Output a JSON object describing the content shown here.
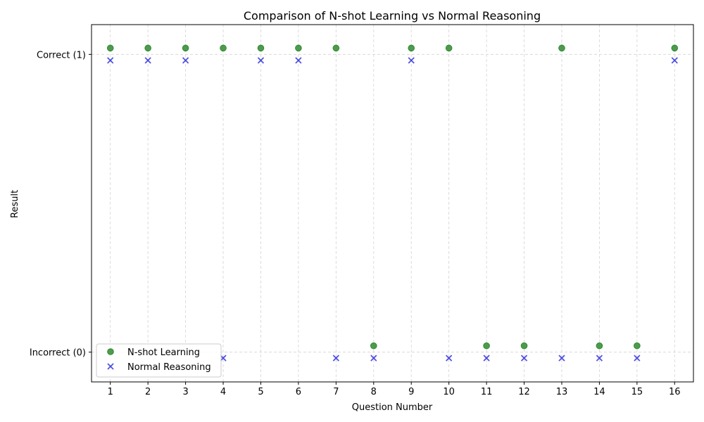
{
  "chart_data": {
    "type": "scatter",
    "title": "Comparison of N-shot Learning vs Normal Reasoning",
    "xlabel": "Question Number",
    "ylabel": "Result",
    "x": [
      1,
      2,
      3,
      4,
      5,
      6,
      7,
      8,
      9,
      10,
      11,
      12,
      13,
      14,
      15,
      16
    ],
    "xlim": [
      0.5,
      16.5
    ],
    "ylim": [
      -0.1,
      1.1
    ],
    "yticks": [
      {
        "value": 0,
        "label": "Incorrect (0)"
      },
      {
        "value": 1,
        "label": "Correct (1)"
      }
    ],
    "grid": true,
    "legend_position": "lower-left",
    "series": [
      {
        "name": "N-shot Learning",
        "marker": "circle",
        "color": "#2e8b2e",
        "values": [
          1,
          1,
          1,
          1,
          1,
          1,
          1,
          0,
          1,
          1,
          0,
          0,
          1,
          0,
          0,
          1
        ]
      },
      {
        "name": "Normal Reasoning",
        "marker": "x",
        "color": "#4040e0",
        "values": [
          1,
          1,
          1,
          0,
          1,
          1,
          0,
          0,
          1,
          0,
          0,
          0,
          0,
          0,
          0,
          1
        ]
      }
    ]
  }
}
